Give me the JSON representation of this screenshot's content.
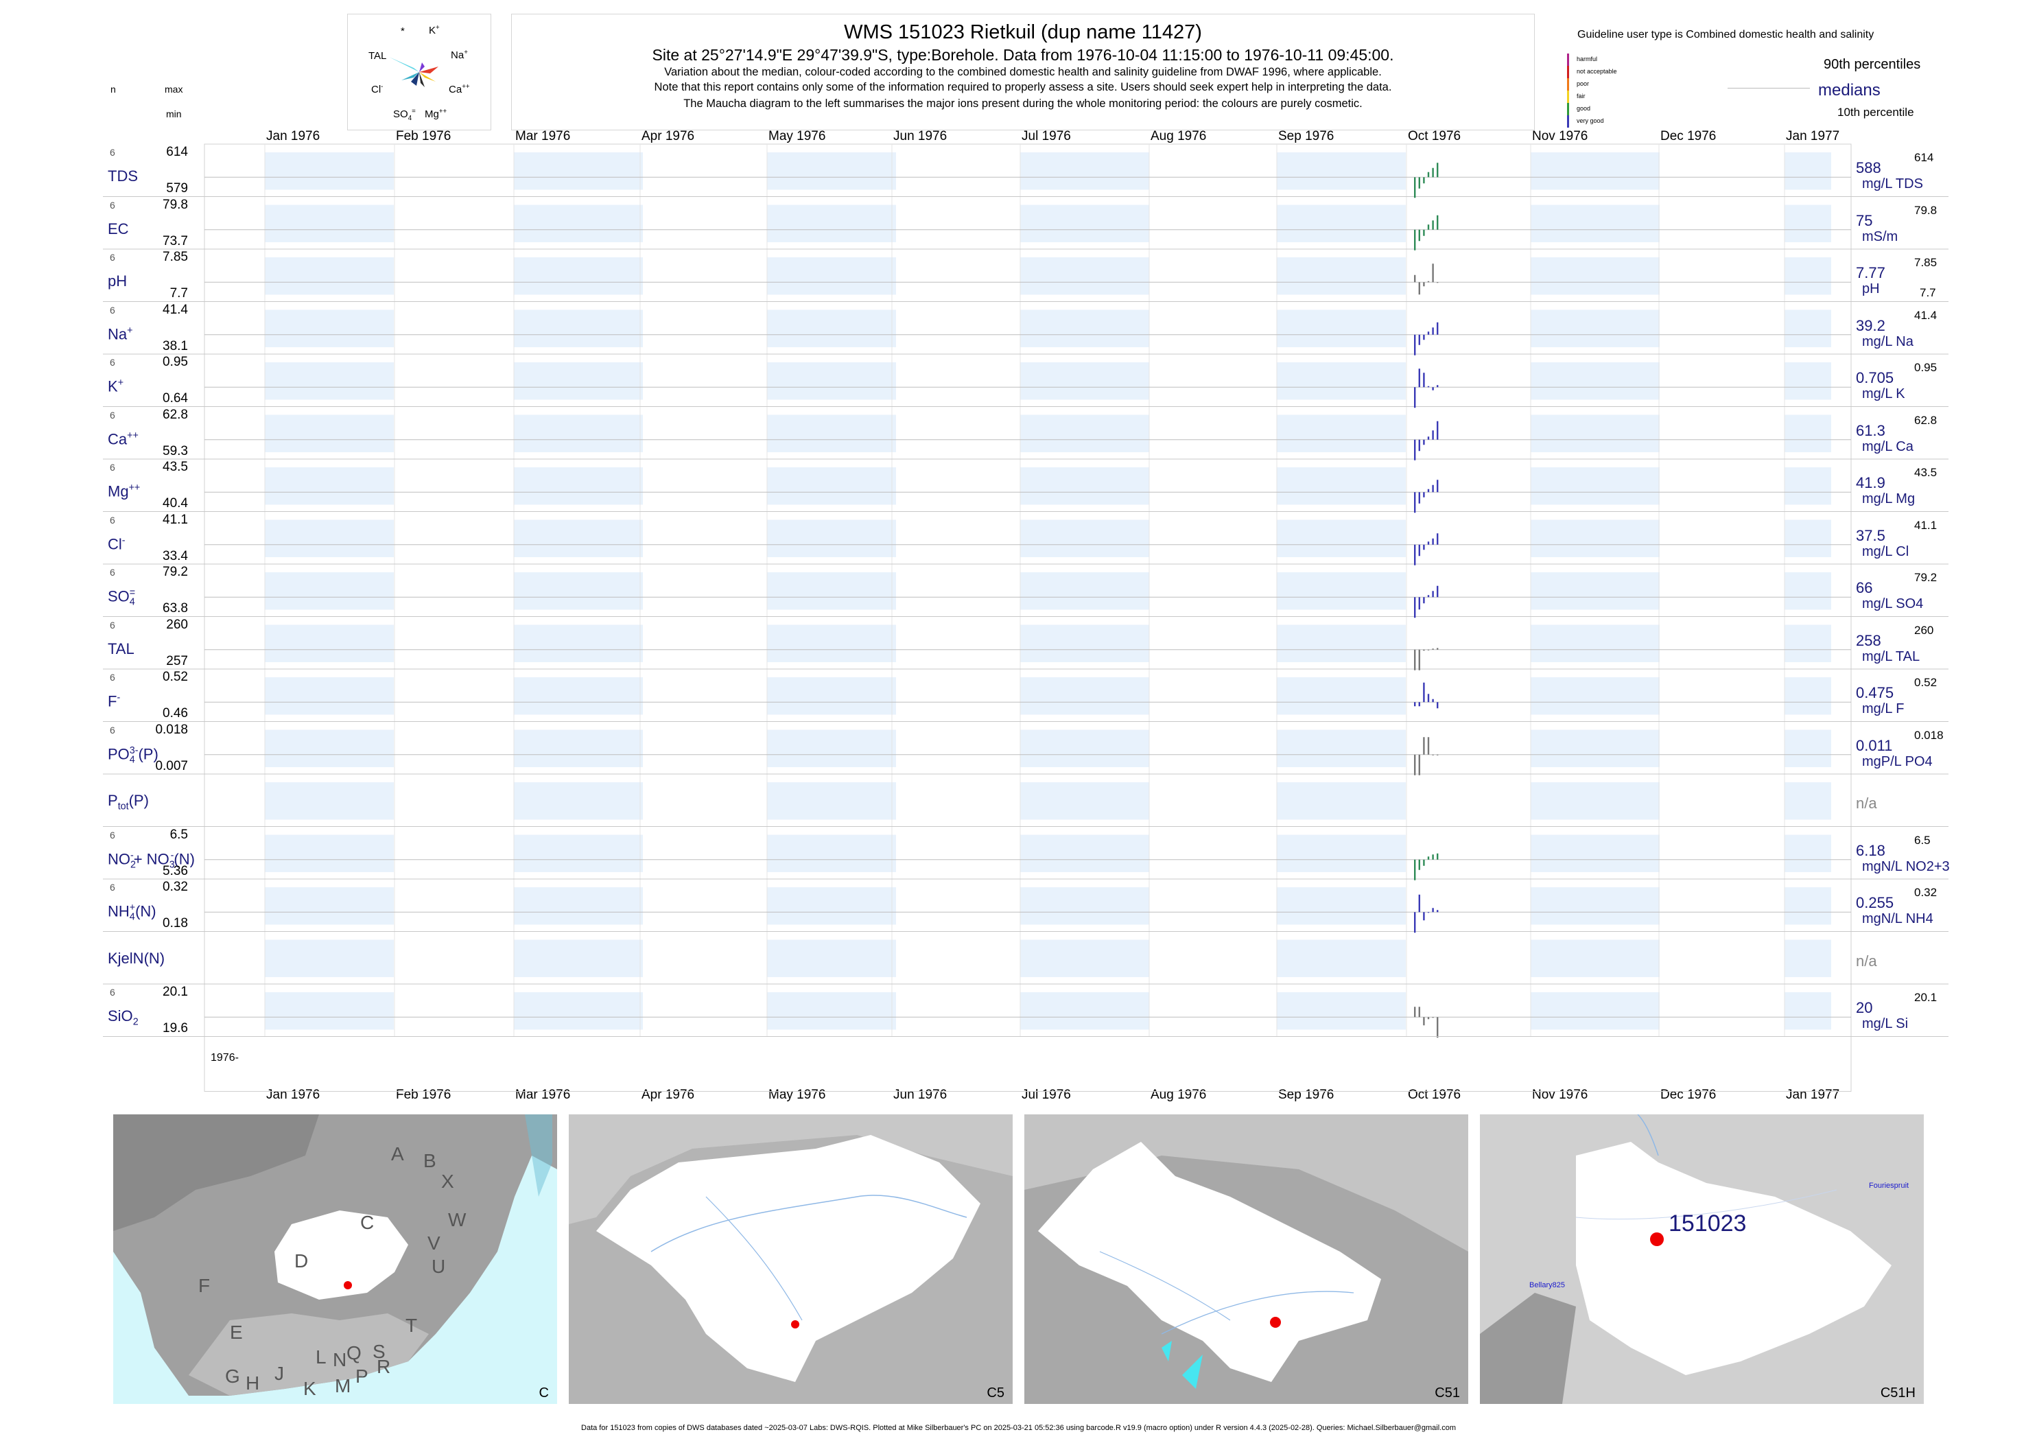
{
  "header": {
    "title": "WMS 151023  Rietkuil (dup name 11427)",
    "subtitle": "Site at 25°27'14.9\"E 29°47'39.9\"S, type:Borehole.  Data from 1976-10-04 11:15:00 to 1976-10-11 09:45:00.",
    "note1": "Variation about the median,  colour-coded according to the combined domestic health and salinity guideline from DWAF 1996, where applicable.",
    "note2": "Note that this report contains only some of the information required to properly assess a site. Users should seek expert help in interpreting the data.",
    "note3": "The Maucha diagram to the left summarises the major ions present during the whole monitoring period: the colours are purely cosmetic."
  },
  "col_headers": {
    "n": "n",
    "max": "max",
    "min": "min"
  },
  "maucha": {
    "labels": {
      "star": "*",
      "k": "K",
      "k_sup": "+",
      "na": "Na",
      "na_sup": "+",
      "tal": "TAL",
      "cl": "Cl",
      "cl_sup": "-",
      "ca": "Ca",
      "ca_sup": "++",
      "so4": "SO",
      "so4_sub": "4",
      "so4_sup": "=",
      "mg": "Mg",
      "mg_sup": "++"
    }
  },
  "guideline": {
    "title": "Guideline user type is Combined domestic health and salinity",
    "classes": [
      {
        "label": "harmful",
        "color": "#b0238a"
      },
      {
        "label": "not acceptable",
        "color": "#d11f1f"
      },
      {
        "label": "poor",
        "color": "#f07a18"
      },
      {
        "label": "fair",
        "color": "#f3d223"
      },
      {
        "label": "good",
        "color": "#2f9a3a"
      },
      {
        "label": "very good",
        "color": "#3a3ab6"
      }
    ],
    "p90": "90th percentiles",
    "medians": "medians",
    "p10": "10th percentile"
  },
  "months": [
    "Jan 1976",
    "Feb 1976",
    "Mar 1976",
    "Apr 1976",
    "May 1976",
    "Jun 1976",
    "Jul 1976",
    "Aug 1976",
    "Sep 1976",
    "Oct 1976",
    "Nov 1976",
    "Dec 1976",
    "Jan 1977"
  ],
  "year_label": "1976-",
  "chart_data": {
    "type": "bar",
    "x_range": [
      "1976-01-01",
      "1977-01-01"
    ],
    "rows": [
      {
        "id": "tds",
        "label": "TDS",
        "n": "6",
        "max": "614",
        "min": "579",
        "median": "588",
        "unit": "mg/L TDS",
        "p90": "614",
        "p10": "",
        "color": "#2e8b57",
        "bars": [
          -1.0,
          -0.55,
          -0.3,
          0.25,
          0.45,
          0.7
        ]
      },
      {
        "id": "ec",
        "label": "EC",
        "n": "6",
        "max": "79.8",
        "min": "73.7",
        "median": "75",
        "unit": "mS/m",
        "p90": "79.8",
        "p10": "",
        "color": "#2e8b57",
        "bars": [
          -1.0,
          -0.55,
          -0.3,
          0.25,
          0.45,
          0.7
        ]
      },
      {
        "id": "ph",
        "label": "pH",
        "n": "6",
        "max": "7.85",
        "min": "7.7",
        "median": "7.77",
        "unit": "pH",
        "p90": "7.85",
        "p10": "7.7",
        "color": "#777777",
        "bars": [
          0.35,
          -0.6,
          -0.2,
          0.05,
          0.9,
          0.0
        ]
      },
      {
        "id": "na",
        "label": "Na",
        "sup": "+",
        "n": "6",
        "max": "41.4",
        "min": "38.1",
        "median": "39.2",
        "unit": "mg/L Na",
        "p90": "41.4",
        "p10": "",
        "color": "#3a3ab6",
        "bars": [
          -1.0,
          -0.5,
          -0.25,
          0.15,
          0.35,
          0.6
        ]
      },
      {
        "id": "k",
        "label": "K",
        "sup": "+",
        "n": "6",
        "max": "0.95",
        "min": "0.64",
        "median": "0.705",
        "unit": "mg/L K",
        "p90": "0.95",
        "p10": "",
        "color": "#3a3ab6",
        "bars": [
          -1.0,
          0.9,
          0.7,
          0.05,
          -0.15,
          0.1
        ]
      },
      {
        "id": "ca",
        "label": "Ca",
        "sup": "++",
        "n": "6",
        "max": "62.8",
        "min": "59.3",
        "median": "61.3",
        "unit": "mg/L Ca",
        "p90": "62.8",
        "p10": "",
        "color": "#3a3ab6",
        "bars": [
          -1.0,
          -0.55,
          -0.25,
          0.15,
          0.45,
          0.9
        ]
      },
      {
        "id": "mg",
        "label": "Mg",
        "sup": "++",
        "n": "6",
        "max": "43.5",
        "min": "40.4",
        "median": "41.9",
        "unit": "mg/L Mg",
        "p90": "43.5",
        "p10": "",
        "color": "#3a3ab6",
        "bars": [
          -1.0,
          -0.55,
          -0.25,
          0.15,
          0.35,
          0.6
        ]
      },
      {
        "id": "cl",
        "label": "Cl",
        "sup": "-",
        "n": "6",
        "max": "41.1",
        "min": "33.4",
        "median": "37.5",
        "unit": "mg/L Cl",
        "p90": "41.1",
        "p10": "",
        "color": "#3a3ab6",
        "bars": [
          -1.0,
          -0.55,
          -0.25,
          0.15,
          0.3,
          0.55
        ]
      },
      {
        "id": "so4",
        "label": "SO",
        "sub": "4",
        "sup": "=",
        "n": "6",
        "max": "79.2",
        "min": "63.8",
        "median": "66",
        "unit": "mg/L SO4",
        "p90": "79.2",
        "p10": "",
        "color": "#3a3ab6",
        "bars": [
          -1.0,
          -0.6,
          -0.3,
          0.1,
          0.3,
          0.55
        ]
      },
      {
        "id": "tal",
        "label": "TAL",
        "n": "6",
        "max": "260",
        "min": "257",
        "median": "258",
        "unit": "mg/L TAL",
        "p90": "260",
        "p10": "",
        "color": "#777777",
        "bars": [
          -1.0,
          -1.0,
          -0.05,
          0.0,
          0.05,
          0.08
        ]
      },
      {
        "id": "f",
        "label": "F",
        "sup": "-",
        "n": "6",
        "max": "0.52",
        "min": "0.46",
        "median": "0.475",
        "unit": "mg/L F",
        "p90": "0.52",
        "p10": "",
        "color": "#3a3ab6",
        "bars": [
          -0.2,
          -0.2,
          0.95,
          0.4,
          0.15,
          -0.3
        ]
      },
      {
        "id": "po4",
        "label": "PO",
        "sub": "4",
        "sup": "3-",
        "suffix": "(P)",
        "n": "6",
        "max": "0.018",
        "min": "0.007",
        "median": "0.011",
        "unit": "mgP/L PO4",
        "p90": "0.018",
        "p10": "",
        "color": "#777777",
        "bars": [
          -1.0,
          -1.0,
          0.85,
          0.85,
          0.0,
          0.0
        ]
      },
      {
        "id": "ptot",
        "label": "P",
        "sub": "tot",
        "suffix": "(P)",
        "n": "",
        "max": "",
        "min": "",
        "median": "n/a",
        "unit": "",
        "p90": "",
        "p10": "",
        "color": "#777777",
        "bars": []
      },
      {
        "id": "no",
        "label": "NO",
        "sub": "2",
        "sup": "-",
        "suffix": "+ NO",
        "sub2": "3",
        "sup2": "-",
        "suffix2": "(N)",
        "n": "6",
        "max": "6.5",
        "min": "5.36",
        "median": "6.18",
        "unit": "mgN/L NO2+3",
        "p90": "6.5",
        "p10": "",
        "color": "#2e8b57",
        "bars": [
          -1.0,
          -0.5,
          -0.3,
          0.15,
          0.25,
          0.3
        ]
      },
      {
        "id": "nh4",
        "label": "NH",
        "sub": "4",
        "sup": "+",
        "suffix": "(N)",
        "n": "6",
        "max": "0.32",
        "min": "0.18",
        "median": "0.255",
        "unit": "mgN/L NH4",
        "p90": "0.32",
        "p10": "",
        "color": "#3a3ab6",
        "bars": [
          -1.0,
          0.85,
          -0.4,
          0.0,
          0.2,
          0.1
        ]
      },
      {
        "id": "kjel",
        "label": "KjelN(N)",
        "n": "",
        "max": "",
        "min": "",
        "median": "n/a",
        "unit": "",
        "p90": "",
        "p10": "",
        "color": "#777777",
        "bars": []
      },
      {
        "id": "sio2",
        "label": "SiO",
        "sub": "2",
        "n": "6",
        "max": "20.1",
        "min": "19.6",
        "median": "20",
        "unit": "mg/L Si",
        "p90": "20.1",
        "p10": "",
        "color": "#777777",
        "bars": [
          0.5,
          0.5,
          -0.4,
          -0.1,
          0.0,
          -1.0
        ]
      }
    ]
  },
  "maps": [
    {
      "id": "c",
      "label": "C",
      "letters": [
        "A",
        "B",
        "X",
        "W",
        "C",
        "V",
        "U",
        "D",
        "T",
        "F",
        "E",
        "S",
        "R",
        "Q",
        "N",
        "L",
        "J",
        "G",
        "H",
        "K",
        "M",
        "P"
      ]
    },
    {
      "id": "c5",
      "label": "C5"
    },
    {
      "id": "c51",
      "label": "C51"
    },
    {
      "id": "c51h",
      "label": "C51H",
      "station": "151023",
      "place1": "Fouriespruit",
      "place2": "Bellary825"
    }
  ],
  "footer": "Data for 151023 from copies of DWS databases dated ~2025-03-07 Labs: DWS-RQIS. Plotted at Mike Silberbauer's PC on 2025-03-21 05:52:36 using barcode.R v19.9 (macro option) under R version 4.4.3 (2025-02-28). Queries: Michael.Silberbauer@gmail.com"
}
